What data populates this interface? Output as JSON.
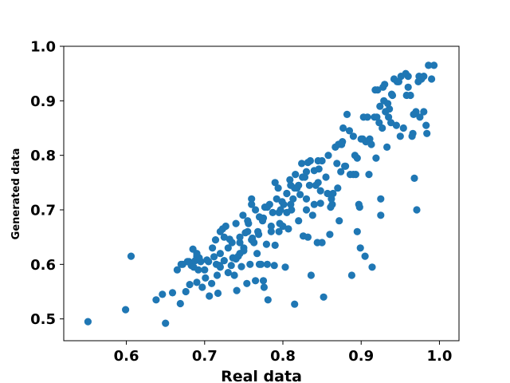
{
  "chart_data": {
    "type": "scatter",
    "title": "",
    "xlabel": "Real data",
    "ylabel": "Generated data",
    "xlim": [
      0.52,
      1.025
    ],
    "ylim": [
      0.46,
      1.0
    ],
    "xticks": [
      0.6,
      0.7,
      0.8,
      0.9,
      1.0
    ],
    "yticks": [
      0.5,
      0.6,
      0.7,
      0.8,
      0.9,
      1.0
    ],
    "xtick_labels": [
      "0.6",
      "0.7",
      "0.8",
      "0.9",
      "1.0"
    ],
    "ytick_labels": [
      "0.5",
      "0.6",
      "0.7",
      "0.8",
      "0.9",
      "1.0"
    ],
    "grid": false,
    "legend": "none",
    "marker_color": "#1f77b4",
    "series": [
      {
        "x": [
          0.551,
          0.599,
          0.606,
          0.638,
          0.646,
          0.65,
          0.659,
          0.665,
          0.669,
          0.672,
          0.676,
          0.678,
          0.681,
          0.683,
          0.685,
          0.686,
          0.688,
          0.69,
          0.692,
          0.693,
          0.695,
          0.697,
          0.701,
          0.703,
          0.706,
          0.709,
          0.712,
          0.714,
          0.716,
          0.717,
          0.719,
          0.72,
          0.723,
          0.725,
          0.727,
          0.73,
          0.732,
          0.734,
          0.736,
          0.738,
          0.74,
          0.741,
          0.743,
          0.745,
          0.747,
          0.749,
          0.75,
          0.752,
          0.754,
          0.756,
          0.758,
          0.76,
          0.761,
          0.763,
          0.765,
          0.767,
          0.769,
          0.77,
          0.772,
          0.774,
          0.776,
          0.777,
          0.779,
          0.781,
          0.783,
          0.785,
          0.787,
          0.789,
          0.79,
          0.792,
          0.794,
          0.796,
          0.797,
          0.799,
          0.801,
          0.803,
          0.805,
          0.807,
          0.809,
          0.811,
          0.813,
          0.815,
          0.816,
          0.818,
          0.82,
          0.822,
          0.824,
          0.826,
          0.828,
          0.83,
          0.832,
          0.834,
          0.836,
          0.838,
          0.84,
          0.842,
          0.844,
          0.846,
          0.848,
          0.85,
          0.852,
          0.855,
          0.858,
          0.861,
          0.864,
          0.867,
          0.869,
          0.871,
          0.874,
          0.876,
          0.879,
          0.882,
          0.885,
          0.888,
          0.89,
          0.893,
          0.895,
          0.897,
          0.899,
          0.902,
          0.905,
          0.908,
          0.911,
          0.914,
          0.917,
          0.919,
          0.921,
          0.923,
          0.925,
          0.927,
          0.929,
          0.931,
          0.933,
          0.936,
          0.939,
          0.942,
          0.945,
          0.948,
          0.951,
          0.954,
          0.957,
          0.96,
          0.963,
          0.966,
          0.968,
          0.971,
          0.974,
          0.977,
          0.98,
          0.983,
          0.986,
          0.99,
          0.993,
          0.67,
          0.68,
          0.69,
          0.7,
          0.705,
          0.715,
          0.72,
          0.73,
          0.74,
          0.745,
          0.75,
          0.755,
          0.76,
          0.765,
          0.77,
          0.775,
          0.78,
          0.79,
          0.8,
          0.805,
          0.81,
          0.82,
          0.83,
          0.835,
          0.84,
          0.845,
          0.85,
          0.86,
          0.87,
          0.875,
          0.88,
          0.89,
          0.895,
          0.9,
          0.91,
          0.92,
          0.925,
          0.93,
          0.935,
          0.94,
          0.95,
          0.96,
          0.965,
          0.97,
          0.975,
          0.98,
          0.72,
          0.735,
          0.755,
          0.768,
          0.775,
          0.785,
          0.795,
          0.805,
          0.815,
          0.825,
          0.832,
          0.845,
          0.857,
          0.863,
          0.872,
          0.886,
          0.898,
          0.903,
          0.913,
          0.918,
          0.928,
          0.938,
          0.946,
          0.958,
          0.967,
          0.973,
          0.984,
          0.69,
          0.71,
          0.725,
          0.745,
          0.76,
          0.78,
          0.795,
          0.81,
          0.83,
          0.848,
          0.862,
          0.877,
          0.892,
          0.906,
          0.924,
          0.934
        ],
        "y": [
          0.495,
          0.517,
          0.615,
          0.535,
          0.545,
          0.492,
          0.548,
          0.59,
          0.528,
          0.6,
          0.55,
          0.605,
          0.563,
          0.598,
          0.628,
          0.595,
          0.607,
          0.567,
          0.59,
          0.612,
          0.605,
          0.558,
          0.575,
          0.608,
          0.542,
          0.565,
          0.614,
          0.645,
          0.58,
          0.547,
          0.598,
          0.62,
          0.665,
          0.607,
          0.67,
          0.63,
          0.646,
          0.598,
          0.612,
          0.58,
          0.675,
          0.552,
          0.615,
          0.65,
          0.596,
          0.69,
          0.63,
          0.658,
          0.565,
          0.675,
          0.6,
          0.71,
          0.648,
          0.64,
          0.7,
          0.62,
          0.655,
          0.687,
          0.6,
          0.68,
          0.558,
          0.705,
          0.637,
          0.535,
          0.71,
          0.67,
          0.695,
          0.598,
          0.75,
          0.72,
          0.74,
          0.675,
          0.7,
          0.715,
          0.71,
          0.595,
          0.73,
          0.665,
          0.755,
          0.7,
          0.72,
          0.527,
          0.765,
          0.74,
          0.68,
          0.728,
          0.785,
          0.652,
          0.76,
          0.7,
          0.787,
          0.745,
          0.58,
          0.69,
          0.772,
          0.745,
          0.64,
          0.775,
          0.712,
          0.79,
          0.54,
          0.76,
          0.8,
          0.705,
          0.73,
          0.815,
          0.785,
          0.82,
          0.77,
          0.825,
          0.78,
          0.875,
          0.845,
          0.58,
          0.835,
          0.765,
          0.795,
          0.71,
          0.63,
          0.83,
          0.615,
          0.87,
          0.83,
          0.595,
          0.87,
          0.795,
          0.92,
          0.86,
          0.72,
          0.85,
          0.9,
          0.88,
          0.815,
          0.885,
          0.912,
          0.94,
          0.855,
          0.935,
          0.945,
          0.85,
          0.95,
          0.945,
          0.91,
          0.84,
          0.758,
          0.7,
          0.945,
          0.94,
          0.88,
          0.855,
          0.965,
          0.94,
          0.965,
          0.6,
          0.605,
          0.615,
          0.59,
          0.605,
          0.6,
          0.595,
          0.585,
          0.61,
          0.64,
          0.625,
          0.68,
          0.72,
          0.57,
          0.6,
          0.57,
          0.6,
          0.635,
          0.67,
          0.695,
          0.71,
          0.745,
          0.72,
          0.79,
          0.71,
          0.75,
          0.64,
          0.655,
          0.74,
          0.82,
          0.78,
          0.765,
          0.66,
          0.83,
          0.765,
          0.87,
          0.69,
          0.93,
          0.87,
          0.91,
          0.835,
          0.925,
          0.835,
          0.88,
          0.87,
          0.945,
          0.66,
          0.64,
          0.66,
          0.66,
          0.685,
          0.66,
          0.695,
          0.73,
          0.74,
          0.76,
          0.65,
          0.79,
          0.73,
          0.71,
          0.68,
          0.765,
          0.705,
          0.87,
          0.82,
          0.92,
          0.925,
          0.86,
          0.935,
          0.91,
          0.875,
          0.935,
          0.84,
          0.62,
          0.63,
          0.65,
          0.62,
          0.645,
          0.705,
          0.66,
          0.745,
          0.77,
          0.735,
          0.72,
          0.85,
          0.8,
          0.825,
          0.89,
          0.895
        ]
      }
    ]
  }
}
